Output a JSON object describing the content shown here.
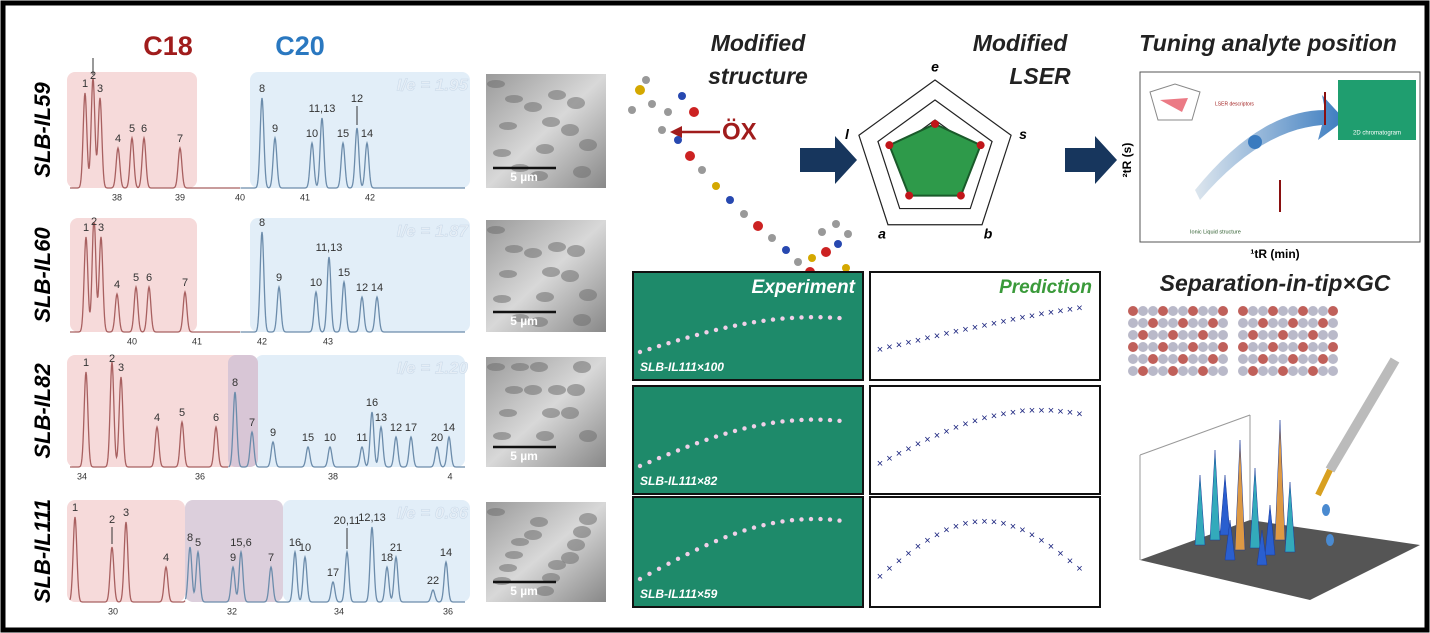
{
  "chromatograms": {
    "headers": [
      "C18",
      "C20"
    ],
    "rows": [
      {
        "label": "SLB-IL59",
        "ie": "I/e = 1.95",
        "scale": "5 µm",
        "peaks": [
          "1",
          "2",
          "3",
          "4",
          "5",
          "6",
          "7",
          "8",
          "9",
          "10",
          "11,13",
          "15",
          "12",
          "14"
        ],
        "ticks": [
          "38",
          "39",
          "40",
          "41",
          "42"
        ]
      },
      {
        "label": "SLB-IL60",
        "ie": "I/e = 1.87",
        "scale": "5 µm",
        "peaks": [
          "1",
          "2",
          "3",
          "4",
          "5",
          "6",
          "7",
          "8",
          "9",
          "11,13",
          "10",
          "15",
          "12",
          "14"
        ],
        "ticks": [
          "40",
          "41",
          "42",
          "43"
        ]
      },
      {
        "label": "SLB-IL82",
        "ie": "I/e = 1.20",
        "scale": "5 µm",
        "peaks": [
          "1",
          "2",
          "3",
          "4",
          "5",
          "6",
          "8",
          "7",
          "9",
          "15",
          "10",
          "11",
          "16",
          "13",
          "12",
          "17",
          "20",
          "14"
        ],
        "ticks": [
          "34",
          "36",
          "38",
          "4"
        ]
      },
      {
        "label": "SLB-IL111",
        "ie": "I/e = 0.86",
        "scale": "5 µm",
        "peaks": [
          "1",
          "2",
          "3",
          "4",
          "8",
          "5",
          "9",
          "15,6",
          "7",
          "16",
          "10",
          "17",
          "20,11",
          "12,13",
          "18",
          "21",
          "22",
          "14"
        ],
        "ticks": [
          "30",
          "32",
          "34",
          "36"
        ]
      }
    ]
  },
  "structure": {
    "title_1": "Modified",
    "title_2": "structure",
    "substituent": "ÖX"
  },
  "lser": {
    "title_1": "Modified",
    "title_2": "LSER",
    "axes": [
      "e",
      "s",
      "b",
      "a",
      "l"
    ]
  },
  "tuning": {
    "title": "Tuning analyte position",
    "y_axis": "²tR (s)",
    "x_axis": "¹tR (min)",
    "notes": [
      "LSER descriptors",
      "2D chromatogram",
      "Ionic Liquid structure"
    ]
  },
  "comparison": {
    "headers": [
      "Experiment",
      "Prediction"
    ],
    "rows": [
      "SLB-IL111×100",
      "SLB-IL111×82",
      "SLB-IL111×59"
    ]
  },
  "separation": {
    "title": "Separation-in-tip×GC"
  }
}
